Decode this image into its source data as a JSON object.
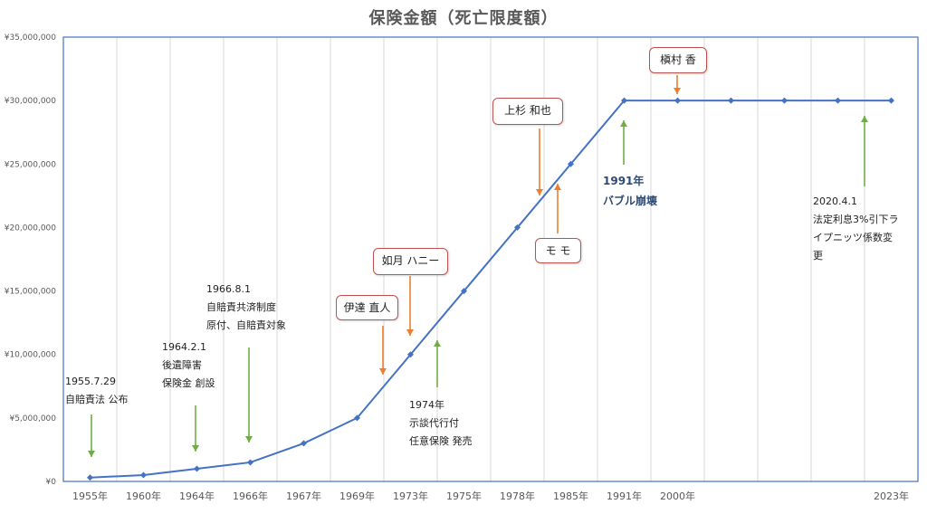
{
  "chart_data": {
    "type": "line",
    "title": "保険金額（死亡限度額）",
    "categories": [
      "1955年",
      "1960年",
      "1964年",
      "1966年",
      "1967年",
      "1969年",
      "1973年",
      "1975年",
      "1978年",
      "1985年",
      "1991年",
      "2000年",
      "",
      "",
      "",
      "2023年"
    ],
    "values": [
      300000,
      500000,
      1000000,
      1500000,
      3000000,
      5000000,
      10000000,
      15000000,
      20000000,
      25000000,
      30000000,
      30000000,
      30000000,
      30000000,
      30000000,
      30000000
    ],
    "y_tick_labels": [
      "¥0",
      "¥5,000,000",
      "¥10,000,000",
      "¥15,000,000",
      "¥20,000,000",
      "¥25,000,000",
      "¥30,000,000",
      "¥35,000,000"
    ],
    "ylim": [
      0,
      35000000
    ],
    "grid": "vertical",
    "line_color": "#4472c4"
  },
  "annotations": {
    "a1955": [
      "1955.7.29",
      "自賠責法 公布"
    ],
    "a1964": [
      "1964.2.1",
      "後遺障害",
      "保険金 創設"
    ],
    "a1966": [
      "1966.8.1",
      "自賠責共済制度",
      "原付、自賠責対象"
    ],
    "a1974": [
      "1974年",
      "示談代行付",
      "任意保険 発売"
    ],
    "a1991": [
      "1991年",
      "バブル崩壊"
    ],
    "a2020": [
      "2020.4.1",
      "法定利息3%引下ラ",
      "イプニッツ係数変",
      "更"
    ]
  },
  "boxes": {
    "date": "伊達 直人",
    "kisaragi": "如月 ハニー",
    "uesugi": "上杉 和也",
    "momo": "モ モ",
    "makimura": "槇村 香"
  },
  "colors": {
    "green_arrow": "#70ad47",
    "orange_arrow": "#ed7d31",
    "box_border": "#c0504d"
  }
}
